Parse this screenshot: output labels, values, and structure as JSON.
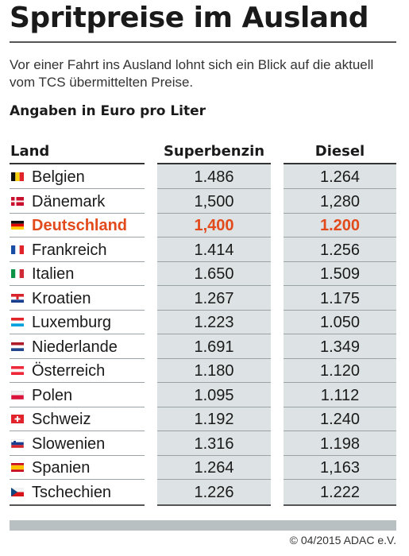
{
  "title": "Spritpreise im Ausland",
  "intro": "Vor einer Fahrt ins Ausland lohnt sich ein Blick auf die aktuell vom TCS übermittelten Preise.",
  "unit_label": "Angaben in Euro pro Liter",
  "columns": {
    "land": "Land",
    "super": "Superbenzin",
    "diesel": "Diesel"
  },
  "accent_color": "#e24a1c",
  "rows": [
    {
      "flag_icon": "belgium-flag-icon",
      "country": "Belgien",
      "super": "1.486",
      "diesel": "1.264"
    },
    {
      "flag_icon": "denmark-flag-icon",
      "country": "Dänemark",
      "super": "1,500",
      "diesel": "1,280"
    },
    {
      "flag_icon": "germany-flag-icon",
      "country": "Deutschland",
      "super": "1,400",
      "diesel": "1.200",
      "highlight": true
    },
    {
      "flag_icon": "france-flag-icon",
      "country": "Frankreich",
      "super": "1.414",
      "diesel": "1.256"
    },
    {
      "flag_icon": "italy-flag-icon",
      "country": "Italien",
      "super": "1.650",
      "diesel": "1.509"
    },
    {
      "flag_icon": "croatia-flag-icon",
      "country": "Kroatien",
      "super": "1.267",
      "diesel": "1.175"
    },
    {
      "flag_icon": "luxembourg-flag-icon",
      "country": "Luxemburg",
      "super": "1.223",
      "diesel": "1.050"
    },
    {
      "flag_icon": "netherlands-flag-icon",
      "country": "Niederlande",
      "super": "1.691",
      "diesel": "1.349"
    },
    {
      "flag_icon": "austria-flag-icon",
      "country": "Österreich",
      "super": "1.180",
      "diesel": "1.120"
    },
    {
      "flag_icon": "poland-flag-icon",
      "country": "Polen",
      "super": "1.095",
      "diesel": "1.112"
    },
    {
      "flag_icon": "switzerland-flag-icon",
      "country": "Schweiz",
      "super": "1.192",
      "diesel": "1.240"
    },
    {
      "flag_icon": "slovenia-flag-icon",
      "country": "Slowenien",
      "super": "1.316",
      "diesel": "1.198"
    },
    {
      "flag_icon": "spain-flag-icon",
      "country": "Spanien",
      "super": "1.264",
      "diesel": "1,163"
    },
    {
      "flag_icon": "czechia-flag-icon",
      "country": "Tschechien",
      "super": "1.226",
      "diesel": "1.222"
    }
  ],
  "copyright": "© 04/2015 ADAC e.V."
}
